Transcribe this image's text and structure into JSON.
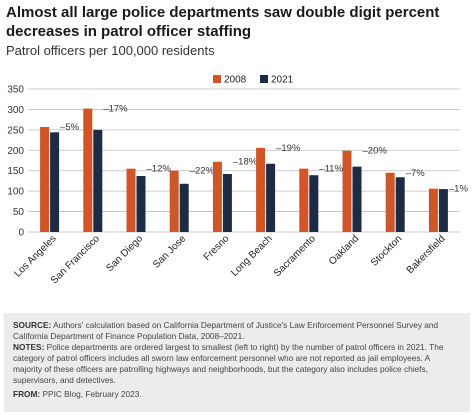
{
  "header": {
    "title": "Almost all large police departments saw double digit percent decreases in patrol officer staffing",
    "subtitle": "Patrol officers per 100,000 residents"
  },
  "colors": {
    "series_2008": "#d0562a",
    "series_2021": "#1d2b45",
    "grid": "#bfbfbf"
  },
  "chart_data": {
    "type": "bar",
    "categories": [
      "Los Angeles",
      "San Francisco",
      "San Diego",
      "San Jose",
      "Fresno",
      "Long Beach",
      "Sacramento",
      "Oakland",
      "Stockton",
      "Bakersfield"
    ],
    "series": [
      {
        "name": "2008",
        "values": [
          257,
          302,
          155,
          150,
          172,
          206,
          155,
          199,
          145,
          106
        ]
      },
      {
        "name": "2021",
        "values": [
          244,
          250,
          137,
          118,
          142,
          167,
          139,
          160,
          134,
          105
        ]
      }
    ],
    "annotations": [
      "–5%",
      "–17%",
      "–12%",
      "–22%",
      "–18%",
      "–19%",
      "–11%",
      "–20%",
      "–7%",
      "–1%"
    ],
    "ylim": [
      0,
      350
    ],
    "yticks": [
      0,
      50,
      100,
      150,
      200,
      250,
      300,
      350
    ],
    "grid": true,
    "legend": "top-right",
    "xlabel": "",
    "ylabel": ""
  },
  "notes": {
    "source_label": "SOURCE:",
    "source_text": " Authors' calculation based on California Department of Justice's Law Enforcement Personnel Survey and California Department of Finance Population Data, 2008–2021.",
    "notes_label": "NOTES:",
    "notes_text": " Police departments are ordered largest to smallest (left to right) by the number of patrol officers in 2021. The category of patrol officers includes all sworn law enforcement personnel who are not reported as jail employees. A majority of these officers are patrolling highways and neighborhoods, but the category also includes police chiefs, supervisors, and detectives.",
    "from_label": "FROM:",
    "from_text": " PPIC Blog, February 2023."
  }
}
